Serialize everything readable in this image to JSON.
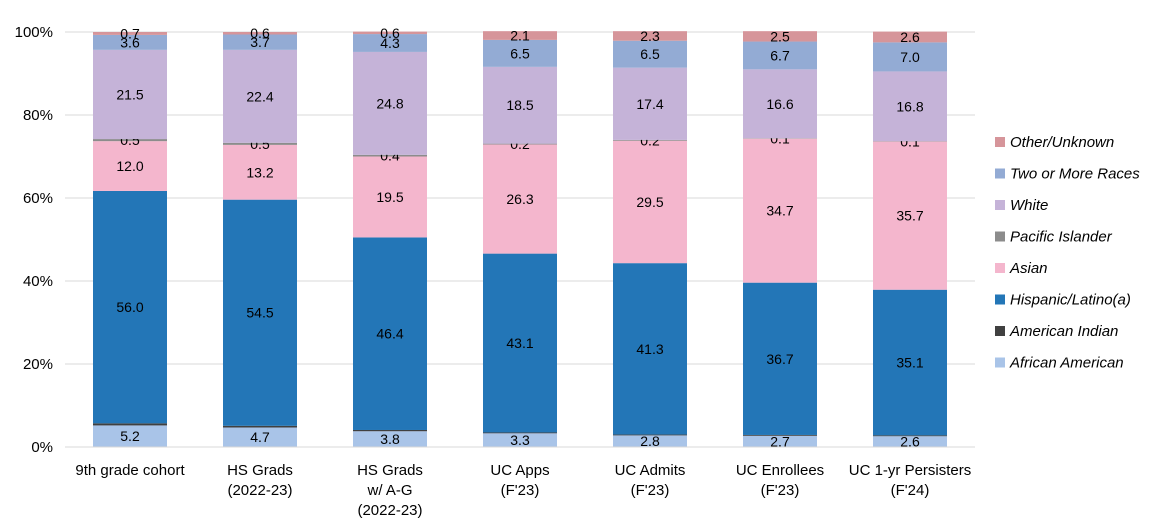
{
  "chart_data": {
    "type": "bar",
    "stacked": true,
    "percent": true,
    "categories": [
      [
        "9th grade cohort"
      ],
      [
        "HS Grads",
        "(2022-23)"
      ],
      [
        "HS Grads",
        "w/ A-G",
        "(2022-23)"
      ],
      [
        "UC Apps",
        "(F'23)"
      ],
      [
        "UC Admits",
        "(F'23)"
      ],
      [
        "UC Enrollees",
        "(F'23)"
      ],
      [
        "UC 1-yr Persisters",
        "(F'24)"
      ]
    ],
    "series": [
      {
        "name": "African American",
        "color": "#a9c4e8",
        "values": [
          5.2,
          4.7,
          3.8,
          3.3,
          2.8,
          2.7,
          2.6
        ],
        "labels": [
          "5.2",
          "4.7",
          "3.8",
          "3.3",
          "2.8",
          "2.7",
          "2.6"
        ]
      },
      {
        "name": "American Indian",
        "color": "#404040",
        "values": [
          0.5,
          0.4,
          0.3,
          0.2,
          0.2,
          0.2,
          0.2
        ],
        "labels": [
          null,
          null,
          null,
          null,
          null,
          null,
          null
        ]
      },
      {
        "name": "Hispanic/Latino(a)",
        "color": "#2376b7",
        "values": [
          56.0,
          54.5,
          46.4,
          43.1,
          41.3,
          36.7,
          35.1
        ],
        "labels": [
          "56.0",
          "54.5",
          "46.4",
          "43.1",
          "41.3",
          "36.7",
          "35.1"
        ]
      },
      {
        "name": "Asian",
        "color": "#f4b6cd",
        "values": [
          12.0,
          13.2,
          19.5,
          26.3,
          29.5,
          34.7,
          35.7
        ],
        "labels": [
          "12.0",
          "13.2",
          "19.5",
          "26.3",
          "29.5",
          "34.7",
          "35.7"
        ]
      },
      {
        "name": "Pacific Islander",
        "color": "#8c8c8c",
        "values": [
          0.5,
          0.5,
          0.4,
          0.2,
          0.2,
          0.1,
          0.1
        ],
        "labels": [
          "0.5",
          "0.5",
          "0.4",
          "0.2",
          "0.2",
          "0.1",
          "0.1"
        ]
      },
      {
        "name": "White",
        "color": "#c5b3d8",
        "values": [
          21.5,
          22.4,
          24.8,
          18.5,
          17.4,
          16.6,
          16.8
        ],
        "labels": [
          "21.5",
          "22.4",
          "24.8",
          "18.5",
          "17.4",
          "16.6",
          "16.8"
        ]
      },
      {
        "name": "Two or More Races",
        "color": "#93abd4",
        "values": [
          3.6,
          3.7,
          4.3,
          6.5,
          6.5,
          6.7,
          7.0
        ],
        "labels": [
          "3.6",
          "3.7",
          "4.3",
          "6.5",
          "6.5",
          "6.7",
          "7.0"
        ]
      },
      {
        "name": "Other/Unknown",
        "color": "#d6959a",
        "values": [
          0.7,
          0.6,
          0.6,
          2.1,
          2.3,
          2.5,
          2.6
        ],
        "labels": [
          "0.7",
          "0.6",
          "0.6",
          "2.1",
          "2.3",
          "2.5",
          "2.6"
        ]
      }
    ],
    "ylim": [
      0,
      100
    ],
    "yticks": [
      "0%",
      "20%",
      "40%",
      "60%",
      "80%",
      "100%"
    ],
    "legend_position": "right",
    "legend_order": [
      "Other/Unknown",
      "Two or More Races",
      "White",
      "Pacific Islander",
      "Asian",
      "Hispanic/Latino(a)",
      "American Indian",
      "African American"
    ],
    "grid": true,
    "gridline_color": "#d9d9d9"
  }
}
